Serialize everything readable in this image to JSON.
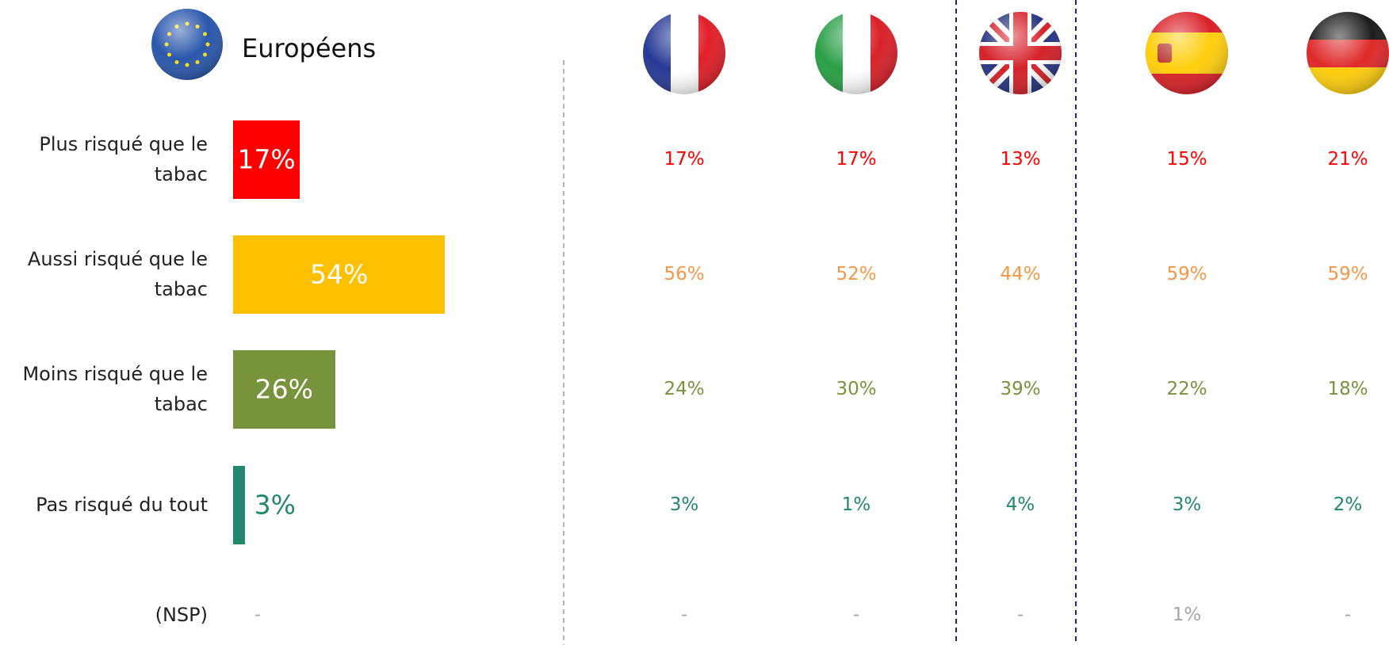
{
  "chart_data": {
    "type": "bar",
    "title": "Européens",
    "categories": [
      "Plus risqué que le tabac",
      "Aussi risqué que le tabac",
      "Moins risqué que le tabac",
      "Pas risqué du tout",
      "(NSP)"
    ],
    "values": [
      17,
      54,
      26,
      3,
      null
    ],
    "value_labels": [
      "17%",
      "54%",
      "26%",
      "3%",
      "-"
    ],
    "colors": [
      "#ff0000",
      "#ffc000",
      "#77933c",
      "#21876d",
      "#a6a6a6"
    ],
    "label_colors": [
      "#ff0000",
      "#f79646",
      "#77933c",
      "#21876d",
      "#a6a6a6"
    ],
    "xlim": [
      0,
      100
    ],
    "countries": [
      {
        "values": [
          17,
          56,
          24,
          3,
          null
        ],
        "value_labels": [
          "17%",
          "56%",
          "24%",
          "3%",
          "-"
        ]
      },
      {
        "values": [
          17,
          52,
          30,
          1,
          null
        ],
        "value_labels": [
          "17%",
          "52%",
          "30%",
          "1%",
          "-"
        ]
      },
      {
        "values": [
          13,
          44,
          39,
          4,
          null
        ],
        "value_labels": [
          "13%",
          "44%",
          "39%",
          "4%",
          "-"
        ]
      },
      {
        "values": [
          15,
          59,
          22,
          3,
          1
        ],
        "value_labels": [
          "15%",
          "59%",
          "22%",
          "3%",
          "1%"
        ]
      },
      {
        "values": [
          21,
          59,
          18,
          2,
          null
        ],
        "value_labels": [
          "21%",
          "59%",
          "18%",
          "2%",
          "-"
        ]
      }
    ]
  }
}
